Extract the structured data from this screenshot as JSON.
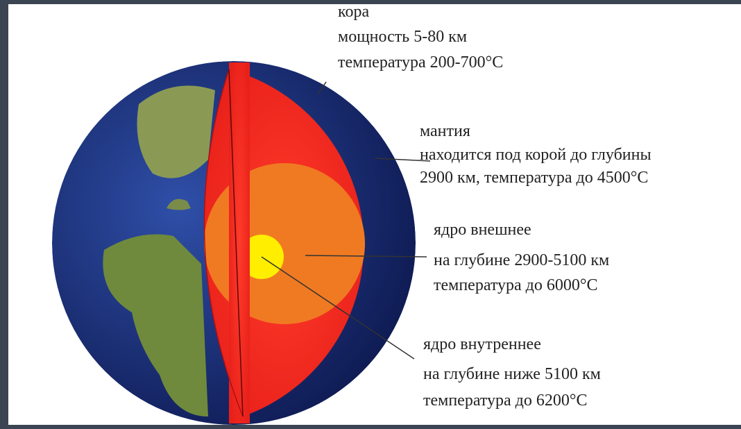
{
  "layers": [
    {
      "title": "кора",
      "lines": [
        "мощность 5-80 км",
        "температура 200-700°С"
      ]
    },
    {
      "title": "мантия",
      "lines": [
        "находится под корой до глубины",
        "2900 км, температура до 4500°С"
      ]
    },
    {
      "title": "ядро внешнее",
      "lines": [
        "на глубине 2900-5100 км",
        "температура до 6000°С"
      ]
    },
    {
      "title": "ядро внутреннее",
      "lines": [
        "на глубине ниже 5100 км",
        "температура до 6200°С"
      ]
    }
  ]
}
